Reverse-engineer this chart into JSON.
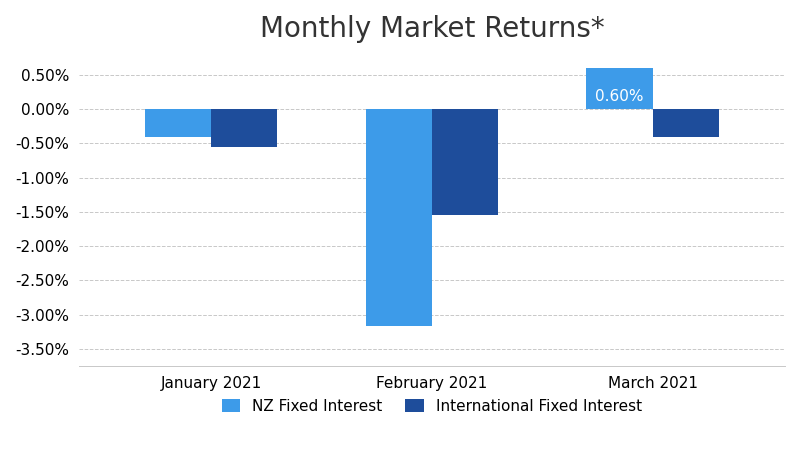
{
  "title": "Monthly Market Returns*",
  "categories": [
    "January 2021",
    "February 2021",
    "March 2021"
  ],
  "series": [
    {
      "name": "NZ Fixed Interest",
      "color": "#3d9be9",
      "values": [
        -0.41,
        -3.17,
        0.6
      ]
    },
    {
      "name": "International Fixed Interest",
      "color": "#1e4d9b",
      "values": [
        -0.55,
        -1.54,
        -0.41
      ]
    }
  ],
  "ylim": [
    -3.75,
    0.75
  ],
  "yticks": [
    -3.5,
    -3.0,
    -2.5,
    -2.0,
    -1.5,
    -1.0,
    -0.5,
    0.0,
    0.5
  ],
  "bar_width": 0.3,
  "background_color": "#ffffff",
  "grid_color": "#c8c8c8",
  "title_fontsize": 20,
  "tick_fontsize": 11,
  "label_fontsize": 11,
  "legend_fontsize": 11,
  "value_fontsize": 11
}
